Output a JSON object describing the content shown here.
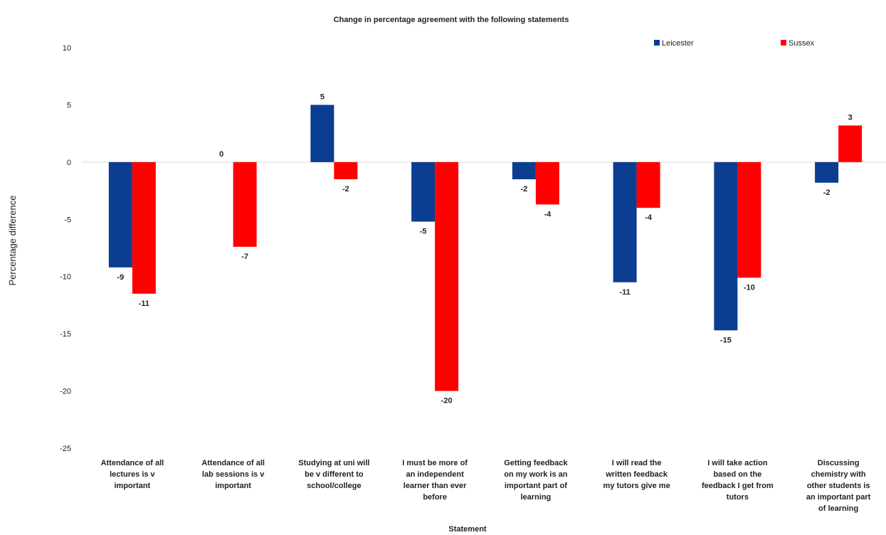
{
  "chart_data": {
    "type": "bar",
    "title": "Change in percentage agreement with the following statements",
    "xlabel": "Statement",
    "ylabel": "Percentage difference",
    "ylim": [
      -25,
      10
    ],
    "yticks": [
      "10",
      "5",
      "0",
      "-5",
      "-10",
      "-15",
      "-20",
      "-25"
    ],
    "legend_position": "top-right",
    "grid": false,
    "categories": [
      [
        "Attendance of all",
        "lectures is v",
        "important"
      ],
      [
        "Attendance of all",
        "lab sessions is v",
        "important"
      ],
      [
        "Studying at uni will",
        "be v different to",
        "school/college"
      ],
      [
        "I must be more of",
        "an independent",
        "learner than ever",
        "before"
      ],
      [
        "Getting feedback",
        "on my work is an",
        "important part of",
        "learning"
      ],
      [
        "I will read the",
        "written feedback",
        "my tutors give me"
      ],
      [
        "I will take action",
        "based on the",
        "feedback I get from",
        "tutors"
      ],
      [
        "Discussing",
        "chemistry with",
        "other students is",
        "an important part",
        "of learning"
      ]
    ],
    "series": [
      {
        "name": "Leicester",
        "color": "#0b3d91",
        "values": [
          -9.2,
          0,
          5,
          -5.2,
          -1.5,
          -10.5,
          -14.7,
          -1.8
        ],
        "labels": [
          "-9",
          "0",
          "5",
          "-5",
          "-2",
          "-11",
          "-15",
          "-2"
        ]
      },
      {
        "name": "Sussex",
        "color": "#ff0000",
        "values": [
          -11.5,
          -7.4,
          -1.5,
          -20,
          -3.7,
          -4,
          -10.1,
          3.2
        ],
        "labels": [
          "-11",
          "-7",
          "-2",
          "-20",
          "-4",
          "-4",
          "-10",
          "3"
        ]
      }
    ]
  }
}
